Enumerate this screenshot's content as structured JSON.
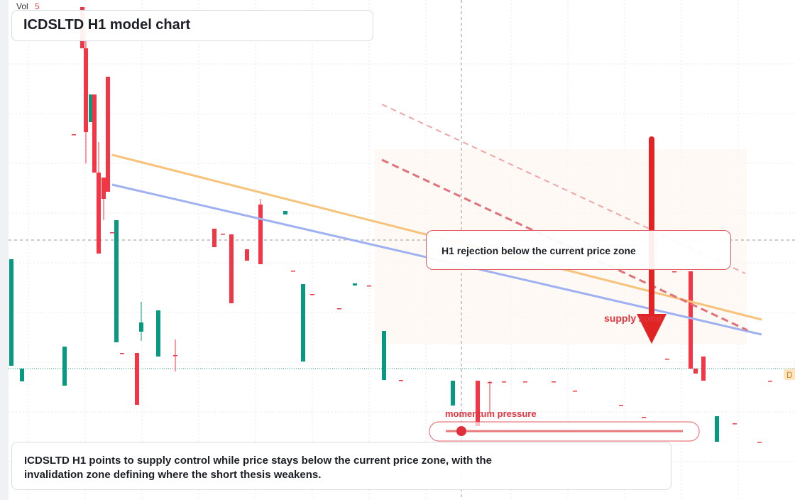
{
  "chart_data": {
    "type": "candlestick",
    "title": "ICDSLTD H1 model chart",
    "volume_label": "Vol",
    "volume_value": "5",
    "price_tag": "D",
    "annotations": {
      "rejection": "H1 rejection below the current price zone",
      "supply": "supply zone",
      "momentum": "momentum pressure",
      "summary": "ICDSLTD H1 points to supply control while price stays below the current price zone, with the invalidation zone defining where the short thesis weakens."
    },
    "up_color": "#089981",
    "down_color": "#f23645",
    "ylim": [
      0,
      70.4
    ],
    "open": [
      18.9,
      16.7,
      16.1,
      51.5,
      69.4,
      63.6,
      53.2,
      57.1,
      46.1,
      45.4,
      59.6,
      37.7,
      22.2,
      20.7,
      20.7,
      23.7,
      20.2,
      20.4,
      38.2,
      37.5,
      37.4,
      35.3,
      41.6,
      40.2,
      32.3,
      19.5,
      29.0,
      27.0,
      30.2,
      30.2,
      16.9,
      16.9,
      13.3,
      16.8,
      16.6,
      16.7,
      16.7,
      16.7,
      15.4,
      13.4,
      11.7,
      19.9,
      32.2,
      32.2,
      18.5,
      20.2,
      8.2,
      10.8,
      8.2,
      16.8
    ],
    "close": [
      33.9,
      18.5,
      21.6,
      51.5,
      63.6,
      51.8,
      57.1,
      46.1,
      34.7,
      42.4,
      43.4,
      37.7,
      39.4,
      20.7,
      13.4,
      25.0,
      26.7,
      20.4,
      35.6,
      37.5,
      27.7,
      33.7,
      33.2,
      40.7,
      32.3,
      30.4,
      29.0,
      27.0,
      30.5,
      30.2,
      23.8,
      16.9,
      16.8,
      10.4,
      16.6,
      16.7,
      16.7,
      16.7,
      15.4,
      13.4,
      11.7,
      19.9,
      32.2,
      18.5,
      17.8,
      16.8,
      11.8,
      10.8,
      8.2,
      16.8
    ],
    "high": [
      33.9,
      18.5,
      21.6,
      51.5,
      69.4,
      66.4,
      57.1,
      57.1,
      50.4,
      45.4,
      59.6,
      37.7,
      39.4,
      20.7,
      20.7,
      27.9,
      26.7,
      22.6,
      38.2,
      37.5,
      37.4,
      35.3,
      42.4,
      40.7,
      32.3,
      30.4,
      29.0,
      27.0,
      30.5,
      30.2,
      23.8,
      16.9,
      16.8,
      16.8,
      16.8,
      16.7,
      16.7,
      16.7,
      15.4,
      13.4,
      11.7,
      19.9,
      32.2,
      32.2,
      18.5,
      20.2,
      11.8,
      10.8,
      8.2,
      16.8
    ],
    "low": [
      18.9,
      16.7,
      16.1,
      51.5,
      63.6,
      47.4,
      53.2,
      46.1,
      34.7,
      39.4,
      43.4,
      37.7,
      22.2,
      20.7,
      13.4,
      22.4,
      20.2,
      18.1,
      35.6,
      37.5,
      27.7,
      33.7,
      33.2,
      40.2,
      32.3,
      19.5,
      29.0,
      27.0,
      30.2,
      30.2,
      16.9,
      16.9,
      13.3,
      10.4,
      12.4,
      16.7,
      16.7,
      16.7,
      15.4,
      13.4,
      11.7,
      19.9,
      32.2,
      18.5,
      17.8,
      16.8,
      8.2,
      10.8,
      8.2,
      16.8
    ]
  }
}
